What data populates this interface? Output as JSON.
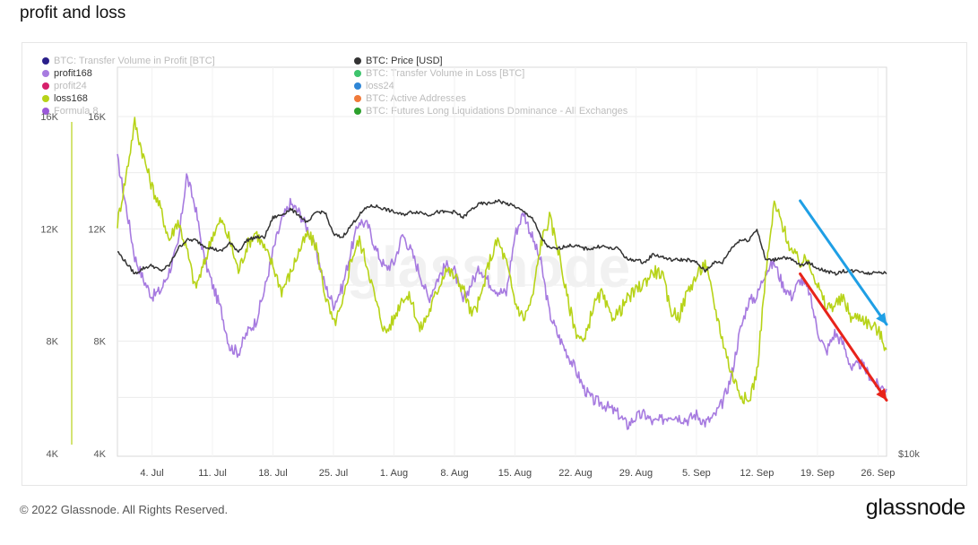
{
  "page": {
    "title": "profit and loss"
  },
  "footer": {
    "copyright": "© 2022 Glassnode. All Rights Reserved.",
    "brand": "glassnode"
  },
  "watermark": "glassnode",
  "legend": [
    {
      "label": "BTC: Transfer Volume in Profit [BTC]",
      "color": "#2a1f8a",
      "active": false
    },
    {
      "label": "profit168",
      "color": "#a77be0",
      "active": true
    },
    {
      "label": "profit24",
      "color": "#d6206b",
      "active": false
    },
    {
      "label": "loss168",
      "color": "#b7d318",
      "active": true
    },
    {
      "label": "Formula 8",
      "color": "#9b59d9",
      "active": false
    },
    {
      "label": "BTC: Price [USD]",
      "color": "#333333",
      "active": true
    },
    {
      "label": "BTC: Transfer Volume in Loss [BTC]",
      "color": "#3ec46d",
      "active": false
    },
    {
      "label": "loss24",
      "color": "#2f86d6",
      "active": false
    },
    {
      "label": "BTC: Active Addresses",
      "color": "#f07a3a",
      "active": false
    },
    {
      "label": "BTC: Futures Long Liquidations Dominance - All Exchanges",
      "color": "#2ca02c",
      "active": false
    }
  ],
  "chart_data": {
    "type": "line",
    "x_ticks": [
      "4. Jul",
      "11. Jul",
      "18. Jul",
      "25. Jul",
      "1. Aug",
      "8. Aug",
      "15. Aug",
      "22. Aug",
      "29. Aug",
      "5. Sep",
      "12. Sep",
      "19. Sep",
      "26. Sep"
    ],
    "y_left_ticks_outer": [
      "16K",
      "12K",
      "8K",
      "4K"
    ],
    "y_left_ticks_inner": [
      "16K",
      "12K",
      "8K",
      "4K"
    ],
    "y_right_label": "$10k",
    "ylim": [
      4000,
      16000
    ],
    "x_range": [
      "2022-06-30",
      "2022-09-27"
    ],
    "series": [
      {
        "name": "profit168",
        "color": "#a77be0",
        "x": [
          "2022-06-30",
          "2022-07-01",
          "2022-07-02",
          "2022-07-03",
          "2022-07-04",
          "2022-07-05",
          "2022-07-06",
          "2022-07-07",
          "2022-07-08",
          "2022-07-09",
          "2022-07-10",
          "2022-07-11",
          "2022-07-12",
          "2022-07-13",
          "2022-07-14",
          "2022-07-15",
          "2022-07-16",
          "2022-07-17",
          "2022-07-18",
          "2022-07-19",
          "2022-07-20",
          "2022-07-21",
          "2022-07-22",
          "2022-07-23",
          "2022-07-24",
          "2022-07-25",
          "2022-07-26",
          "2022-07-27",
          "2022-07-28",
          "2022-07-29",
          "2022-07-30",
          "2022-07-31",
          "2022-08-01",
          "2022-08-02",
          "2022-08-03",
          "2022-08-04",
          "2022-08-05",
          "2022-08-06",
          "2022-08-07",
          "2022-08-08",
          "2022-08-09",
          "2022-08-10",
          "2022-08-11",
          "2022-08-12",
          "2022-08-13",
          "2022-08-14",
          "2022-08-15",
          "2022-08-16",
          "2022-08-17",
          "2022-08-18",
          "2022-08-19",
          "2022-08-20",
          "2022-08-21",
          "2022-08-22",
          "2022-08-23",
          "2022-08-24",
          "2022-08-25",
          "2022-08-26",
          "2022-08-27",
          "2022-08-28",
          "2022-08-29",
          "2022-08-30",
          "2022-08-31",
          "2022-09-01",
          "2022-09-02",
          "2022-09-03",
          "2022-09-04",
          "2022-09-05",
          "2022-09-06",
          "2022-09-07",
          "2022-09-08",
          "2022-09-09",
          "2022-09-10",
          "2022-09-11",
          "2022-09-12",
          "2022-09-13",
          "2022-09-14",
          "2022-09-15",
          "2022-09-16",
          "2022-09-17",
          "2022-09-18",
          "2022-09-19",
          "2022-09-20",
          "2022-09-21",
          "2022-09-22",
          "2022-09-23",
          "2022-09-24",
          "2022-09-25",
          "2022-09-26",
          "2022-09-27"
        ],
        "values": [
          14500,
          12800,
          11000,
          10200,
          9600,
          9800,
          10500,
          11400,
          13900,
          12800,
          11000,
          10000,
          9100,
          7800,
          7600,
          8300,
          8700,
          9800,
          11200,
          12300,
          12900,
          12600,
          12000,
          11200,
          10000,
          9300,
          9900,
          11200,
          12300,
          12100,
          11200,
          10600,
          10800,
          11800,
          11200,
          10400,
          9500,
          10200,
          10700,
          10500,
          9400,
          10100,
          10600,
          10100,
          9800,
          9700,
          11800,
          12600,
          11700,
          10800,
          9000,
          8200,
          7600,
          7000,
          6300,
          5900,
          5800,
          5600,
          5400,
          5000,
          5300,
          5400,
          5100,
          5200,
          5400,
          5300,
          5200,
          5400,
          5100,
          5300,
          5800,
          6700,
          8300,
          9400,
          9600,
          10500,
          10800,
          10000,
          9600,
          10200,
          9800,
          8400,
          7600,
          8300,
          7900,
          7000,
          7200,
          6800,
          6400,
          6300
        ]
      },
      {
        "name": "loss168",
        "color": "#b7d318",
        "x": [
          "2022-06-30",
          "2022-07-01",
          "2022-07-02",
          "2022-07-03",
          "2022-07-04",
          "2022-07-05",
          "2022-07-06",
          "2022-07-07",
          "2022-07-08",
          "2022-07-09",
          "2022-07-10",
          "2022-07-11",
          "2022-07-12",
          "2022-07-13",
          "2022-07-14",
          "2022-07-15",
          "2022-07-16",
          "2022-07-17",
          "2022-07-18",
          "2022-07-19",
          "2022-07-20",
          "2022-07-21",
          "2022-07-22",
          "2022-07-23",
          "2022-07-24",
          "2022-07-25",
          "2022-07-26",
          "2022-07-27",
          "2022-07-28",
          "2022-07-29",
          "2022-07-30",
          "2022-07-31",
          "2022-08-01",
          "2022-08-02",
          "2022-08-03",
          "2022-08-04",
          "2022-08-05",
          "2022-08-06",
          "2022-08-07",
          "2022-08-08",
          "2022-08-09",
          "2022-08-10",
          "2022-08-11",
          "2022-08-12",
          "2022-08-13",
          "2022-08-14",
          "2022-08-15",
          "2022-08-16",
          "2022-08-17",
          "2022-08-18",
          "2022-08-19",
          "2022-08-20",
          "2022-08-21",
          "2022-08-22",
          "2022-08-23",
          "2022-08-24",
          "2022-08-25",
          "2022-08-26",
          "2022-08-27",
          "2022-08-28",
          "2022-08-29",
          "2022-08-30",
          "2022-08-31",
          "2022-09-01",
          "2022-09-02",
          "2022-09-03",
          "2022-09-04",
          "2022-09-05",
          "2022-09-06",
          "2022-09-07",
          "2022-09-08",
          "2022-09-09",
          "2022-09-10",
          "2022-09-11",
          "2022-09-12",
          "2022-09-13",
          "2022-09-14",
          "2022-09-15",
          "2022-09-16",
          "2022-09-17",
          "2022-09-18",
          "2022-09-19",
          "2022-09-20",
          "2022-09-21",
          "2022-09-22",
          "2022-09-23",
          "2022-09-24",
          "2022-09-25",
          "2022-09-26",
          "2022-09-27"
        ],
        "values": [
          12200,
          13900,
          15800,
          14600,
          13500,
          12700,
          11600,
          12300,
          11300,
          9900,
          10700,
          11800,
          12300,
          11600,
          10500,
          11400,
          11900,
          11300,
          10700,
          9800,
          10400,
          11200,
          11800,
          11400,
          9700,
          8600,
          9200,
          10900,
          11600,
          10600,
          9300,
          8300,
          8800,
          9600,
          9500,
          8400,
          9000,
          9800,
          10600,
          10300,
          9900,
          8900,
          9500,
          10800,
          11600,
          10800,
          9400,
          8800,
          9500,
          11500,
          12400,
          11300,
          9600,
          8400,
          7900,
          9200,
          9700,
          8900,
          9000,
          9500,
          9800,
          10100,
          10500,
          10400,
          9100,
          8900,
          9800,
          10300,
          10800,
          9400,
          8100,
          6900,
          6200,
          5800,
          6900,
          10300,
          12900,
          12100,
          11200,
          10800,
          10900,
          10000,
          9200,
          9300,
          9500,
          8800,
          8900,
          8600,
          8400,
          7700
        ]
      },
      {
        "name": "BTC: Price [USD]",
        "color": "#333333",
        "x": [
          "2022-06-30",
          "2022-07-01",
          "2022-07-02",
          "2022-07-03",
          "2022-07-04",
          "2022-07-05",
          "2022-07-06",
          "2022-07-07",
          "2022-07-08",
          "2022-07-09",
          "2022-07-10",
          "2022-07-11",
          "2022-07-12",
          "2022-07-13",
          "2022-07-14",
          "2022-07-15",
          "2022-07-16",
          "2022-07-17",
          "2022-07-18",
          "2022-07-19",
          "2022-07-20",
          "2022-07-21",
          "2022-07-22",
          "2022-07-23",
          "2022-07-24",
          "2022-07-25",
          "2022-07-26",
          "2022-07-27",
          "2022-07-28",
          "2022-07-29",
          "2022-07-30",
          "2022-07-31",
          "2022-08-01",
          "2022-08-02",
          "2022-08-03",
          "2022-08-04",
          "2022-08-05",
          "2022-08-06",
          "2022-08-07",
          "2022-08-08",
          "2022-08-09",
          "2022-08-10",
          "2022-08-11",
          "2022-08-12",
          "2022-08-13",
          "2022-08-14",
          "2022-08-15",
          "2022-08-16",
          "2022-08-17",
          "2022-08-18",
          "2022-08-19",
          "2022-08-20",
          "2022-08-21",
          "2022-08-22",
          "2022-08-23",
          "2022-08-24",
          "2022-08-25",
          "2022-08-26",
          "2022-08-27",
          "2022-08-28",
          "2022-08-29",
          "2022-08-30",
          "2022-08-31",
          "2022-09-01",
          "2022-09-02",
          "2022-09-03",
          "2022-09-04",
          "2022-09-05",
          "2022-09-06",
          "2022-09-07",
          "2022-09-08",
          "2022-09-09",
          "2022-09-10",
          "2022-09-11",
          "2022-09-12",
          "2022-09-13",
          "2022-09-14",
          "2022-09-15",
          "2022-09-16",
          "2022-09-17",
          "2022-09-18",
          "2022-09-19",
          "2022-09-20",
          "2022-09-21",
          "2022-09-22",
          "2022-09-23",
          "2022-09-24",
          "2022-09-25",
          "2022-09-26",
          "2022-09-27"
        ],
        "values": [
          11200,
          10800,
          10400,
          10600,
          10700,
          10500,
          10700,
          11300,
          11600,
          11600,
          11400,
          11300,
          11200,
          11500,
          11200,
          11600,
          11700,
          11700,
          12400,
          12500,
          12700,
          12500,
          12200,
          12600,
          12600,
          11800,
          11700,
          12100,
          12500,
          12800,
          12800,
          12700,
          12600,
          12500,
          12600,
          12600,
          12500,
          12600,
          12600,
          12600,
          12400,
          12700,
          12900,
          12900,
          13000,
          12900,
          12800,
          12600,
          12400,
          11700,
          11300,
          11300,
          11400,
          11400,
          11300,
          11300,
          11400,
          11300,
          11300,
          10900,
          10900,
          10800,
          11100,
          11000,
          10900,
          10900,
          10900,
          10800,
          10500,
          10800,
          10800,
          11300,
          11600,
          11600,
          12000,
          10900,
          10900,
          11000,
          10900,
          10700,
          10800,
          10600,
          10500,
          10400,
          10500,
          10500,
          10500,
          10400,
          10500,
          10400
        ]
      }
    ],
    "annotations": [
      {
        "type": "arrow",
        "color": "#e8231a",
        "from": {
          "x": "2022-09-17",
          "y": 10400
        },
        "to": {
          "x": "2022-09-27",
          "y": 5900
        }
      },
      {
        "type": "arrow",
        "color": "#1f9fe5",
        "from": {
          "x": "2022-09-17",
          "y": 13000
        },
        "to": {
          "x": "2022-09-27",
          "y": 8600
        }
      }
    ],
    "colors": {
      "grid": "#ececec",
      "axis_green": "#b7d318"
    }
  }
}
